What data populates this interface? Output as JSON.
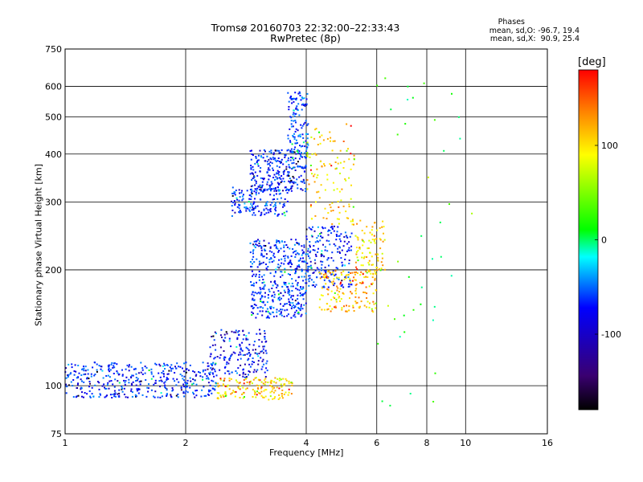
{
  "header": {
    "title_line1": "Tromsø 20160703 22:32:00–22:33:43",
    "title_line2": "RwPretec (8p)"
  },
  "stats": {
    "heading": "Phases",
    "line_o": "mean, sd,O: -96.7, 19.4",
    "line_x": "mean, sd,X:  90.9, 25.4"
  },
  "chart_data": {
    "type": "scatter",
    "xlabel": "Frequency [MHz]",
    "ylabel": "Stationary phase Virtual Height [km]",
    "xscale": "log",
    "yscale": "log",
    "xlim": [
      1,
      16
    ],
    "ylim": [
      75,
      750
    ],
    "xticks": [
      1,
      2,
      4,
      6,
      8,
      10,
      16
    ],
    "xtick_labels": [
      "1",
      "2",
      "4",
      "6",
      "8",
      "10",
      "16"
    ],
    "yticks": [
      75,
      100,
      200,
      300,
      400,
      500,
      600,
      750
    ],
    "ytick_labels": [
      "75",
      "100",
      "200",
      "300",
      "400",
      "500",
      "600",
      "750"
    ],
    "grid": true,
    "colorbar": {
      "label": "[deg]",
      "range": [
        -180,
        180
      ],
      "ticks": [
        100,
        0,
        -100
      ],
      "tick_labels": [
        "100",
        "0",
        "-100"
      ],
      "colors": [
        "#000000",
        "#3a0070",
        "#0000ff",
        "#00ffff",
        "#00ff00",
        "#ffff00",
        "#ff8000",
        "#ff0000"
      ]
    },
    "clusters": [
      {
        "region": "low E trace",
        "freq_mhz": [
          1.0,
          2.4
        ],
        "height_km": [
          93,
          115
        ],
        "phase_deg": -100,
        "count": 420
      },
      {
        "region": "low E trace yellow",
        "freq_mhz": [
          2.4,
          3.7
        ],
        "height_km": [
          92,
          105
        ],
        "phase_deg": 100,
        "count": 160
      },
      {
        "region": "E rise",
        "freq_mhz": [
          2.3,
          3.2
        ],
        "height_km": [
          105,
          140
        ],
        "phase_deg": -110,
        "count": 180
      },
      {
        "region": "F1 trace",
        "freq_mhz": [
          2.9,
          4.0
        ],
        "height_km": [
          150,
          240
        ],
        "phase_deg": -95,
        "count": 420
      },
      {
        "region": "F1 extension",
        "freq_mhz": [
          4.0,
          5.2
        ],
        "height_km": [
          180,
          260
        ],
        "phase_deg": -100,
        "count": 200
      },
      {
        "region": "F1 X-mode",
        "freq_mhz": [
          4.3,
          6.0
        ],
        "height_km": [
          155,
          200
        ],
        "phase_deg": 110,
        "count": 160
      },
      {
        "region": "F1 X-mode high",
        "freq_mhz": [
          5.3,
          6.3
        ],
        "height_km": [
          195,
          270
        ],
        "phase_deg": 100,
        "count": 90
      },
      {
        "region": "F2 lower",
        "freq_mhz": [
          2.6,
          3.6
        ],
        "height_km": [
          275,
          330
        ],
        "phase_deg": -95,
        "count": 160
      },
      {
        "region": "F2 upper",
        "freq_mhz": [
          2.9,
          4.0
        ],
        "height_km": [
          320,
          410
        ],
        "phase_deg": -105,
        "count": 260
      },
      {
        "region": "F2 cusp",
        "freq_mhz": [
          3.6,
          4.05
        ],
        "height_km": [
          400,
          580
        ],
        "phase_deg": -90,
        "count": 120
      },
      {
        "region": "F2 X-mode",
        "freq_mhz": [
          4.0,
          5.3
        ],
        "height_km": [
          260,
          480
        ],
        "phase_deg": 100,
        "count": 120
      },
      {
        "region": "scattered upper",
        "freq_mhz": [
          6.0,
          10.5
        ],
        "height_km": [
          85,
          650
        ],
        "phase_deg": 0,
        "count": 40
      }
    ]
  }
}
